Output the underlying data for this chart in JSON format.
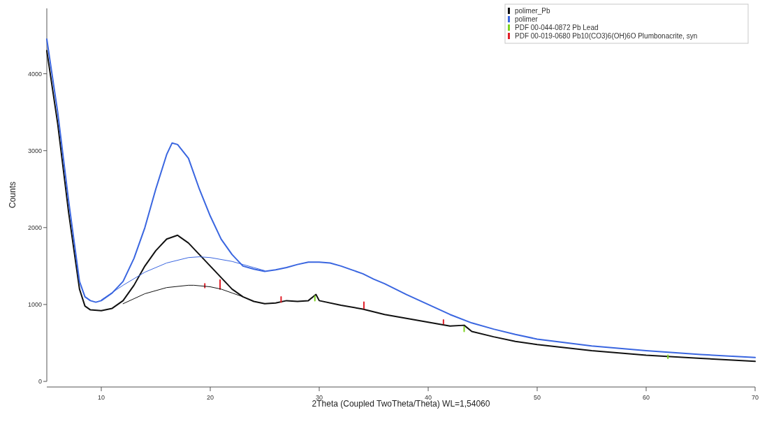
{
  "chart_data": {
    "type": "line",
    "xlabel": "2Theta (Coupled TwoTheta/Theta) WL=1,54060",
    "ylabel": "Counts",
    "xlim": [
      5,
      70
    ],
    "ylim": [
      0,
      4850
    ],
    "xticks": [
      10,
      20,
      30,
      40,
      50,
      60,
      70
    ],
    "yticks": [
      0,
      1000,
      2000,
      3000,
      4000
    ],
    "grid": false,
    "legend": "top right",
    "line_style": "solid",
    "marker": "none",
    "series": [
      {
        "name": "polimer_Pb",
        "color": "#111111",
        "x": [
          5,
          6,
          7,
          8,
          8.5,
          9,
          10,
          11,
          12,
          13,
          14,
          15,
          16,
          17,
          18,
          19,
          20,
          21,
          22,
          23,
          24,
          25,
          26,
          27,
          28,
          29,
          29.7,
          30,
          32,
          34,
          36,
          38,
          40,
          42,
          43.3,
          44,
          46,
          48,
          50,
          55,
          60,
          65,
          70
        ],
        "values": [
          4300,
          3350,
          2200,
          1200,
          980,
          930,
          920,
          950,
          1050,
          1250,
          1500,
          1700,
          1850,
          1900,
          1800,
          1650,
          1500,
          1350,
          1200,
          1100,
          1040,
          1010,
          1020,
          1050,
          1040,
          1050,
          1130,
          1050,
          990,
          940,
          870,
          820,
          770,
          720,
          730,
          650,
          580,
          520,
          480,
          400,
          340,
          300,
          260
        ]
      },
      {
        "name": "polimer",
        "color": "#3a66e0",
        "x": [
          5,
          6,
          7,
          8,
          8.5,
          9,
          9.5,
          10,
          11,
          12,
          13,
          14,
          15,
          16,
          16.5,
          17,
          18,
          19,
          20,
          21,
          22,
          23,
          24,
          25,
          26,
          27,
          28,
          29,
          30,
          31,
          32,
          33,
          34,
          35,
          36,
          37,
          38,
          40,
          42,
          44,
          46,
          48,
          50,
          55,
          60,
          65,
          70
        ],
        "values": [
          4450,
          3500,
          2350,
          1300,
          1100,
          1050,
          1030,
          1050,
          1150,
          1300,
          1600,
          2000,
          2500,
          2950,
          3100,
          3080,
          2900,
          2500,
          2150,
          1850,
          1650,
          1500,
          1460,
          1430,
          1450,
          1480,
          1520,
          1550,
          1550,
          1540,
          1500,
          1450,
          1400,
          1330,
          1270,
          1200,
          1130,
          1000,
          870,
          760,
          680,
          610,
          550,
          460,
          400,
          350,
          310
        ]
      },
      {
        "name": "PDF 00-044-0872 Pb Lead",
        "color": "#7ed321",
        "x": [
          29.6,
          29.6,
          null,
          43.3,
          43.3,
          null,
          62,
          62
        ],
        "values": [
          1050,
          1110,
          null,
          650,
          710,
          null,
          300,
          340
        ]
      },
      {
        "name": "PDF 00-019-0680 Pb10(CO3)6(OH)6O Plumbonacrite, syn",
        "color": "#e0202a",
        "x": [
          19.5,
          19.5,
          null,
          20.9,
          20.9,
          null,
          26.5,
          26.5,
          null,
          34.1,
          34.1,
          null,
          41.4,
          41.4
        ],
        "values": [
          1220,
          1270,
          null,
          1200,
          1320,
          null,
          1030,
          1100,
          null,
          950,
          1030,
          null,
          750,
          800
        ]
      },
      {
        "color": "#3a66e0",
        "x": [
          10,
          12,
          14,
          16,
          18,
          19,
          20,
          22,
          24,
          25
        ],
        "values": [
          1060,
          1250,
          1420,
          1540,
          1610,
          1620,
          1610,
          1560,
          1480,
          1440
        ]
      },
      {
        "color": "#111111",
        "x": [
          12,
          14,
          16,
          18,
          18.5,
          20,
          21,
          22,
          23
        ],
        "values": [
          1010,
          1140,
          1220,
          1250,
          1250,
          1230,
          1200,
          1150,
          1100
        ]
      }
    ]
  }
}
